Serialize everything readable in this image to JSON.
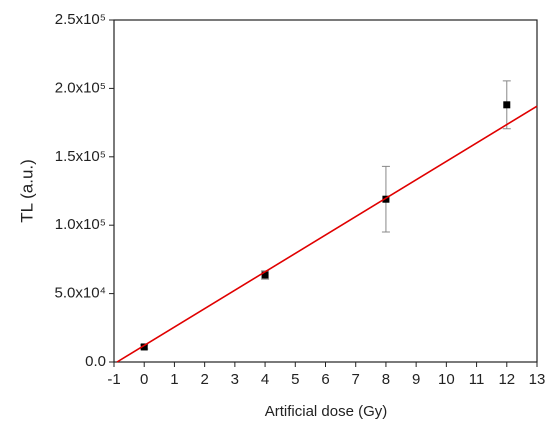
{
  "chart_data": {
    "type": "scatter",
    "xlabel": "Artificial dose (Gy)",
    "ylabel": "TL (a.u.)",
    "series": [
      {
        "x": [
          0,
          4,
          8,
          12
        ],
        "values": [
          11000,
          63600,
          119000,
          188000
        ],
        "errors": [
          1500,
          3000,
          24000,
          17500
        ],
        "color": "#000000",
        "errorColor": "#888888"
      },
      {
        "type": "line",
        "x": [
          -0.9,
          13
        ],
        "values": [
          0,
          187000
        ],
        "color": "#e00000"
      }
    ],
    "xlim": [
      -1,
      13
    ],
    "xticks": [
      -1,
      0,
      1,
      2,
      3,
      4,
      5,
      6,
      7,
      8,
      9,
      10,
      11,
      12,
      13
    ],
    "ylim": [
      0,
      250000
    ],
    "yticks": [
      {
        "value": 0,
        "label": "0.0"
      },
      {
        "value": 50000,
        "label": "5.0x10⁴"
      },
      {
        "value": 100000,
        "label": "1.0x10⁵"
      },
      {
        "value": 150000,
        "label": "1.5x10⁵"
      },
      {
        "value": 200000,
        "label": "2.0x10⁵"
      },
      {
        "value": 250000,
        "label": "2.5x10⁵"
      }
    ]
  }
}
